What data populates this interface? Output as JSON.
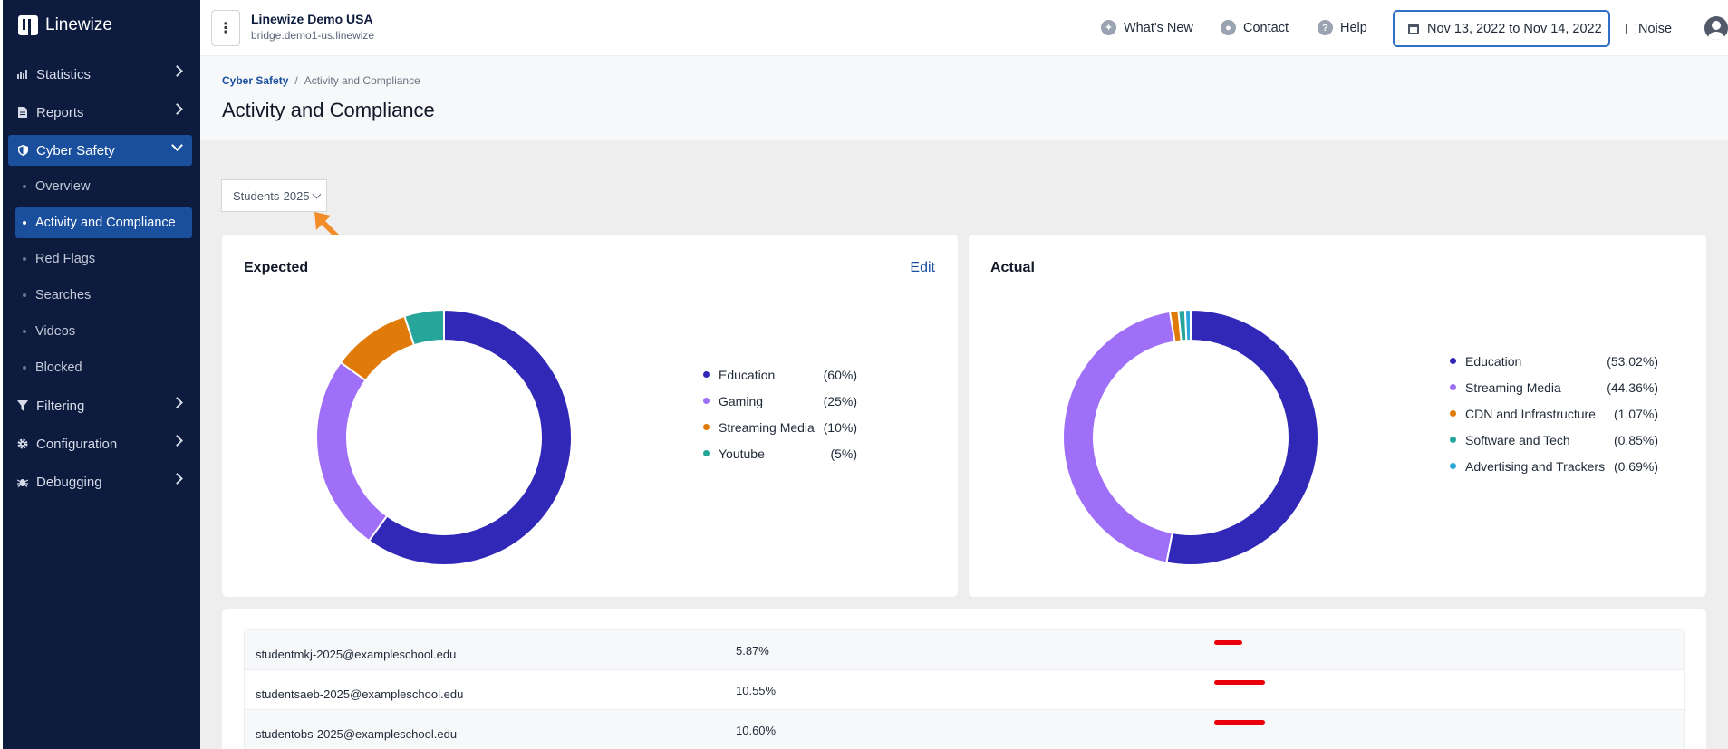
{
  "app": {
    "name": "Linewize"
  },
  "sidebar": {
    "items": [
      {
        "label": "Statistics",
        "icon": "chart-icon"
      },
      {
        "label": "Reports",
        "icon": "document-icon"
      },
      {
        "label": "Cyber Safety",
        "icon": "shield-icon"
      },
      {
        "label": "Filtering",
        "icon": "filter-icon"
      },
      {
        "label": "Configuration",
        "icon": "gear-icon"
      },
      {
        "label": "Debugging",
        "icon": "bug-icon"
      }
    ],
    "subitems": [
      {
        "label": "Overview"
      },
      {
        "label": "Activity and Compliance"
      },
      {
        "label": "Red Flags"
      },
      {
        "label": "Searches"
      },
      {
        "label": "Videos"
      },
      {
        "label": "Blocked"
      }
    ]
  },
  "topbar": {
    "org_name": "Linewize Demo USA",
    "org_host": "bridge.demo1-us.linewize",
    "whats_new": "What's New",
    "contact": "Contact",
    "help": "Help",
    "date_range": "Nov 13, 2022 to Nov 14, 2022",
    "noise": "Noise"
  },
  "breadcrumb": {
    "root": "Cyber Safety",
    "sep": "/",
    "current": "Activity and Compliance"
  },
  "page_title": "Activity and Compliance",
  "group_select": {
    "value": "Students-2025"
  },
  "expected": {
    "title": "Expected",
    "edit": "Edit",
    "segments": [
      {
        "label": "Education",
        "pct": "(60%)",
        "value": 60,
        "color": "#3228b8"
      },
      {
        "label": "Gaming",
        "pct": "(25%)",
        "value": 25,
        "color": "#a06ff7"
      },
      {
        "label": "Streaming Media",
        "pct": "(10%)",
        "value": 10,
        "color": "#e07a08"
      },
      {
        "label": "Youtube",
        "pct": "(5%)",
        "value": 5,
        "color": "#26a69a"
      }
    ]
  },
  "actual": {
    "title": "Actual",
    "segments": [
      {
        "label": "Education",
        "pct": "(53.02%)",
        "value": 53.02,
        "color": "#3228b8"
      },
      {
        "label": "Streaming Media",
        "pct": "(44.36%)",
        "value": 44.36,
        "color": "#a06ff7"
      },
      {
        "label": "CDN and Infrastructure",
        "pct": "(1.07%)",
        "value": 1.07,
        "color": "#e07a08"
      },
      {
        "label": "Software and Tech",
        "pct": "(0.85%)",
        "value": 0.85,
        "color": "#26a69a"
      },
      {
        "label": "Advertising and Trackers",
        "pct": "(0.69%)",
        "value": 0.69,
        "color": "#2aa7d8"
      }
    ]
  },
  "table": {
    "rows": [
      {
        "email": "studentmkj-2025@exampleschool.edu",
        "pct": "5.87%",
        "value": 5.87
      },
      {
        "email": "studentsaeb-2025@exampleschool.edu",
        "pct": "10.55%",
        "value": 10.55
      },
      {
        "email": "studentobs-2025@exampleschool.edu",
        "pct": "10.60%",
        "value": 10.6
      }
    ]
  },
  "colors": {
    "sidebar_bg": "#0d1b3e",
    "accent": "#1a4f9e",
    "bar": "#e8000b",
    "arrow": "#f28c28"
  }
}
